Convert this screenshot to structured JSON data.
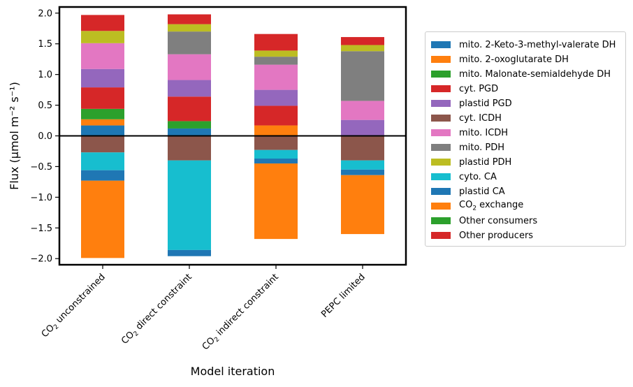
{
  "chart_data": {
    "type": "bar",
    "stacked": true,
    "xlabel": "Model iteration",
    "ylabel": "Flux (μmol m⁻² s⁻¹)",
    "ylim": [
      -2.1,
      2.1
    ],
    "yticks": [
      "−2.0",
      "−1.5",
      "−1.0",
      "−0.5",
      "0.0",
      "0.5",
      "1.0",
      "1.5",
      "2.0"
    ],
    "ytick_values": [
      -2.0,
      -1.5,
      -1.0,
      -0.5,
      0.0,
      0.5,
      1.0,
      1.5,
      2.0
    ],
    "categories": [
      "CO2 unconstrained",
      "CO2 direct constraint",
      "CO2 indirect constraint",
      "PEPC limited"
    ],
    "legend_position": "right",
    "zero_line": true,
    "grid": false,
    "series": [
      {
        "name": "mito. 2-Keto-3-methyl-valerate DH",
        "color": "#1f77b4",
        "values": [
          0.17,
          0.12,
          0.0,
          0.0
        ]
      },
      {
        "name": "mito. 2-oxoglutarate DH",
        "color": "#ff7f0e",
        "values": [
          0.1,
          0.0,
          0.17,
          0.0
        ]
      },
      {
        "name": "mito. Malonate-semialdehyde DH",
        "color": "#2ca02c",
        "values": [
          0.17,
          0.12,
          0.0,
          0.0
        ]
      },
      {
        "name": "cyt. PGD",
        "color": "#d62728",
        "values": [
          0.35,
          0.4,
          0.32,
          0.0
        ]
      },
      {
        "name": "plastid PGD",
        "color": "#9467bd",
        "values": [
          0.3,
          0.27,
          0.26,
          0.26
        ]
      },
      {
        "name": "cyt. ICDH",
        "color": "#8c564b",
        "values": [
          -0.27,
          -0.4,
          -0.23,
          -0.4
        ]
      },
      {
        "name": "mito. ICDH",
        "color": "#e377c2",
        "values": [
          0.42,
          0.42,
          0.41,
          0.31
        ]
      },
      {
        "name": "mito. PDH",
        "color": "#7f7f7f",
        "values": [
          0.0,
          0.37,
          0.13,
          0.81
        ]
      },
      {
        "name": "plastid PDH",
        "color": "#bcbd22",
        "values": [
          0.2,
          0.12,
          0.1,
          0.1
        ]
      },
      {
        "name": "cyto. CA",
        "color": "#17becf",
        "values": [
          -0.29,
          -1.46,
          -0.14,
          -0.15
        ]
      },
      {
        "name": "plastid CA",
        "color": "#1f77b4",
        "values": [
          -0.17,
          -0.1,
          -0.08,
          -0.09
        ]
      },
      {
        "name": "CO2 exchange",
        "color": "#ff7f0e",
        "values": [
          -1.26,
          0.0,
          -1.23,
          -0.96
        ]
      },
      {
        "name": "Other consumers",
        "color": "#2ca02c",
        "values": [
          0.0,
          0.0,
          0.0,
          0.0
        ]
      },
      {
        "name": "Other producers",
        "color": "#d62728",
        "values": [
          0.26,
          0.16,
          0.27,
          0.13
        ]
      }
    ]
  }
}
